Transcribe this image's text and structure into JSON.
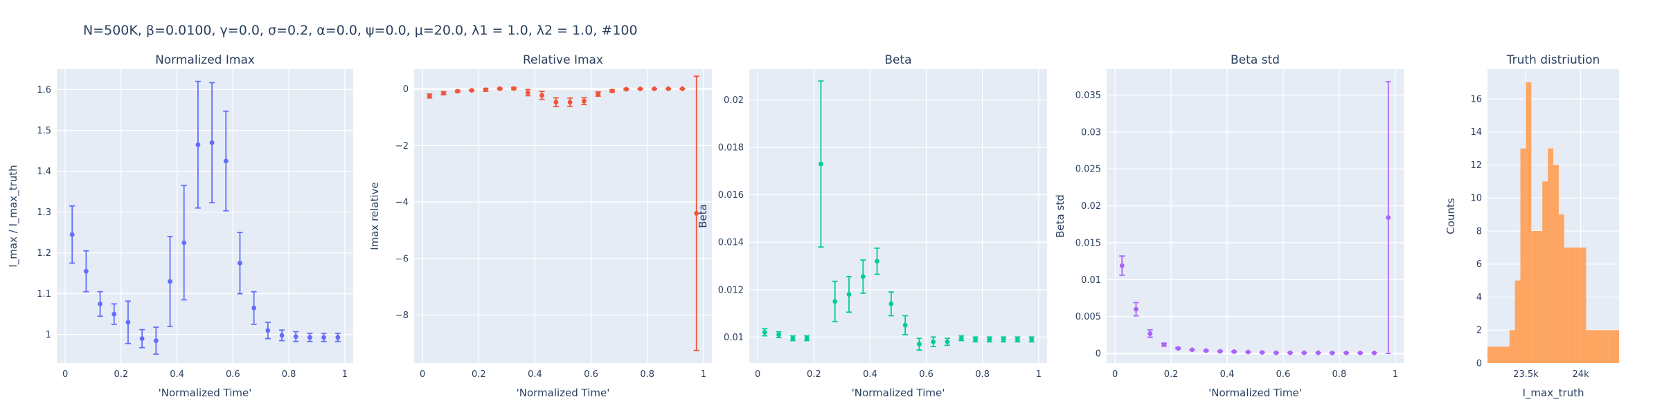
{
  "figure_title": "N=500K, β=0.0100, γ=0.0, σ=0.2,  α=0.0, ψ=0.0, μ=20.0, λ1 = 1.0, λ2 = 1.0, #100",
  "chart_data": [
    {
      "type": "scatter",
      "title": "Normalized Imax",
      "xlabel": "'Normalized Time'",
      "ylabel": "I_max / I_max_truth",
      "color": "#636efa",
      "xlim": [
        -0.03,
        1.03
      ],
      "ylim": [
        0.93,
        1.65
      ],
      "xticks": [
        0,
        0.2,
        0.4,
        0.6,
        0.8,
        1
      ],
      "xticklabels": [
        "0",
        "0.2",
        "0.4",
        "0.6",
        "0.8",
        "1"
      ],
      "yticks": [
        1,
        1.1,
        1.2,
        1.3,
        1.4,
        1.5,
        1.6
      ],
      "yticklabels": [
        "1",
        "1.1",
        "1.2",
        "1.3",
        "1.4",
        "1.5",
        "1.6"
      ],
      "x": [
        0.025,
        0.075,
        0.125,
        0.175,
        0.225,
        0.275,
        0.325,
        0.375,
        0.425,
        0.475,
        0.525,
        0.575,
        0.625,
        0.675,
        0.725,
        0.775,
        0.825,
        0.875,
        0.925,
        0.975
      ],
      "y": [
        1.245,
        1.155,
        1.075,
        1.05,
        1.03,
        0.99,
        0.985,
        1.13,
        1.225,
        1.465,
        1.47,
        1.425,
        1.175,
        1.065,
        1.01,
        0.998,
        0.995,
        0.993,
        0.993,
        0.993
      ],
      "error": [
        0.07,
        0.05,
        0.03,
        0.025,
        0.052,
        0.022,
        0.033,
        0.11,
        0.14,
        0.155,
        0.147,
        0.122,
        0.075,
        0.04,
        0.02,
        0.013,
        0.012,
        0.01,
        0.01,
        0.01
      ]
    },
    {
      "type": "scatter",
      "title": "Relative Imax",
      "xlabel": "'Normalized Time'",
      "ylabel": "Imax relative",
      "color": "#ef553b",
      "xlim": [
        -0.03,
        1.03
      ],
      "ylim": [
        -9.7,
        0.7
      ],
      "xticks": [
        0,
        0.2,
        0.4,
        0.6,
        0.8,
        1
      ],
      "xticklabels": [
        "0",
        "0.2",
        "0.4",
        "0.6",
        "0.8",
        "1"
      ],
      "yticks": [
        0,
        -2,
        -4,
        -6,
        -8
      ],
      "yticklabels": [
        "0",
        "−2",
        "−4",
        "−6",
        "−8"
      ],
      "x": [
        0.025,
        0.075,
        0.125,
        0.175,
        0.225,
        0.275,
        0.325,
        0.375,
        0.425,
        0.475,
        0.525,
        0.575,
        0.625,
        0.675,
        0.725,
        0.775,
        0.825,
        0.875,
        0.925,
        0.975
      ],
      "y": [
        -0.25,
        -0.15,
        -0.08,
        -0.05,
        -0.03,
        0.01,
        0.015,
        -0.13,
        -0.23,
        -0.47,
        -0.47,
        -0.43,
        -0.18,
        -0.07,
        -0.01,
        0.002,
        0.005,
        0.007,
        0.007,
        -4.4
      ],
      "error": [
        0.07,
        0.05,
        0.03,
        0.025,
        0.05,
        0.022,
        0.033,
        0.11,
        0.14,
        0.155,
        0.147,
        0.122,
        0.075,
        0.04,
        0.02,
        0.013,
        0.012,
        0.01,
        0.01,
        4.85
      ]
    },
    {
      "type": "scatter",
      "title": "Beta",
      "xlabel": "'Normalized Time'",
      "ylabel": "Beta",
      "color": "#00cc96",
      "xlim": [
        -0.03,
        1.03
      ],
      "ylim": [
        0.0089,
        0.0213
      ],
      "xticks": [
        0,
        0.2,
        0.4,
        0.6,
        0.8,
        1
      ],
      "xticklabels": [
        "0",
        "0.2",
        "0.4",
        "0.6",
        "0.8",
        "1"
      ],
      "yticks": [
        0.01,
        0.012,
        0.014,
        0.016,
        0.018,
        0.02
      ],
      "yticklabels": [
        "0.01",
        "0.012",
        "0.014",
        "0.016",
        "0.018",
        "0.02"
      ],
      "x": [
        0.025,
        0.075,
        0.125,
        0.175,
        0.225,
        0.275,
        0.325,
        0.375,
        0.425,
        0.475,
        0.525,
        0.575,
        0.625,
        0.675,
        0.725,
        0.775,
        0.825,
        0.875,
        0.925,
        0.975
      ],
      "y": [
        0.0102,
        0.0101,
        0.00995,
        0.00995,
        0.0173,
        0.0115,
        0.0118,
        0.01255,
        0.0132,
        0.0114,
        0.0105,
        0.0097,
        0.0098,
        0.0098,
        0.00995,
        0.0099,
        0.0099,
        0.0099,
        0.0099,
        0.0099
      ],
      "error": [
        0.00015,
        0.00012,
        0.0001,
        0.0001,
        0.0035,
        0.00085,
        0.00075,
        0.0007,
        0.00055,
        0.0005,
        0.0004,
        0.00025,
        0.0002,
        0.00015,
        0.0001,
        0.0001,
        0.0001,
        0.0001,
        0.0001,
        0.0001
      ]
    },
    {
      "type": "scatter",
      "title": "Beta std",
      "xlabel": "'Normalized Time'",
      "ylabel": "Beta std",
      "color": "#ab63fa",
      "xlim": [
        -0.03,
        1.03
      ],
      "ylim": [
        -0.0013,
        0.0385
      ],
      "xticks": [
        0,
        0.2,
        0.4,
        0.6,
        0.8,
        1
      ],
      "xticklabels": [
        "0",
        "0.2",
        "0.4",
        "0.6",
        "0.8",
        "1"
      ],
      "yticks": [
        0,
        0.005,
        0.01,
        0.015,
        0.02,
        0.025,
        0.03,
        0.035
      ],
      "yticklabels": [
        "0",
        "0.005",
        "0.01",
        "0.015",
        "0.02",
        "0.025",
        "0.03",
        "0.035"
      ],
      "x": [
        0.025,
        0.075,
        0.125,
        0.175,
        0.225,
        0.275,
        0.325,
        0.375,
        0.425,
        0.475,
        0.525,
        0.575,
        0.625,
        0.675,
        0.725,
        0.775,
        0.825,
        0.875,
        0.925,
        0.975
      ],
      "y": [
        0.0119,
        0.006,
        0.0027,
        0.0012,
        0.0007,
        0.0005,
        0.0004,
        0.0003,
        0.00025,
        0.0002,
        0.00015,
        0.0001,
        0.0001,
        0.0001,
        0.0001,
        8e-05,
        8e-05,
        8e-05,
        8e-05,
        0.0184
      ],
      "error": [
        0.0013,
        0.0009,
        0.0005,
        0.0002,
        0.0001,
        5e-05,
        5e-05,
        5e-05,
        4e-05,
        3e-05,
        3e-05,
        2e-05,
        2e-05,
        2e-05,
        2e-05,
        2e-05,
        2e-05,
        2e-05,
        2e-05,
        0.0184
      ]
    },
    {
      "type": "bar",
      "title": "Truth distriution",
      "xlabel": "I_max_truth",
      "ylabel": "Counts",
      "color": "#ffa15a",
      "xlim": [
        23150,
        24350
      ],
      "ylim": [
        0,
        17.8
      ],
      "xticks": [
        23500,
        24000
      ],
      "xticklabels": [
        "23.5k",
        "24k"
      ],
      "yticks": [
        0,
        2,
        4,
        6,
        8,
        10,
        12,
        14,
        16
      ],
      "yticklabels": [
        "0",
        "2",
        "4",
        "6",
        "8",
        "10",
        "12",
        "14",
        "16"
      ],
      "bin_edges": [
        23150,
        23250,
        23350,
        23400,
        23450,
        23500,
        23550,
        23600,
        23650,
        23700,
        23750,
        23800,
        23850,
        23900,
        23950,
        24000,
        24050,
        24100,
        24150,
        24200,
        24250,
        24350
      ],
      "values": [
        1,
        1,
        2,
        5,
        13,
        17,
        8,
        8,
        11,
        13,
        12,
        9,
        7,
        7,
        7,
        7,
        2,
        2,
        2,
        2,
        2
      ]
    }
  ]
}
